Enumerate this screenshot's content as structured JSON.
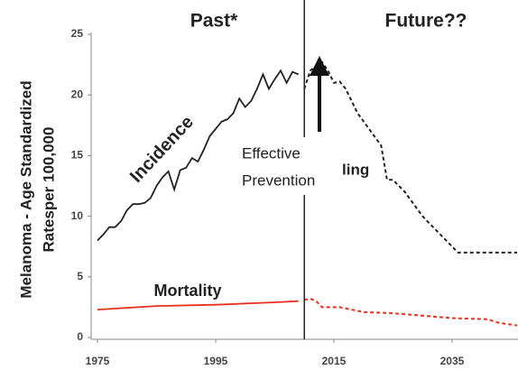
{
  "chart_data": {
    "type": "line",
    "ylabel_lines": [
      "Melanoma  - Age Standardized",
      "Ratesper 100,000"
    ],
    "annotations": {
      "past": "Past*",
      "future": "Future??",
      "incidence": "Incidence",
      "mortality": "Mortality",
      "prevention": [
        "Effective",
        "Prevention"
      ],
      "hidden": "ling"
    },
    "xlim": [
      1975,
      2046
    ],
    "xticks": [
      1975,
      1995,
      2015,
      2035
    ],
    "ylim": [
      0,
      25
    ],
    "yticks": [
      0,
      5,
      10,
      15,
      20,
      25
    ],
    "divider": 2010,
    "grid": false,
    "series": [
      {
        "color": "#222222",
        "dashed": false,
        "x": [
          1975,
          1976,
          1977,
          1978,
          1979,
          1980,
          1981,
          1982,
          1983,
          1984,
          1985,
          1986,
          1987,
          1988,
          1989,
          1990,
          1991,
          1992,
          1993,
          1994,
          1995,
          1996,
          1997,
          1998,
          1999,
          2000,
          2001,
          2002,
          2003,
          2004,
          2005,
          2006,
          2007,
          2008,
          2009
        ],
        "values": [
          8,
          8.5,
          9.1,
          9.1,
          9.6,
          10.5,
          11,
          11,
          11.1,
          11.5,
          12.5,
          13.2,
          13.7,
          12.2,
          13.8,
          14,
          14.8,
          14.5,
          15.5,
          16.6,
          17.2,
          17.8,
          18,
          18.5,
          19.7,
          19,
          19.5,
          20.5,
          21.7,
          20.5,
          21.3,
          22,
          21,
          21.9,
          21.7
        ]
      },
      {
        "color": "#222222",
        "dashed": true,
        "x": [
          2010,
          2011,
          2012,
          2013,
          2014,
          2015,
          2016,
          2017,
          2019,
          2022,
          2023,
          2024,
          2025,
          2027,
          2030,
          2033,
          2036,
          2046
        ],
        "values": [
          20.5,
          22,
          22.4,
          22.7,
          22,
          21,
          21.1,
          20.5,
          18.5,
          16.5,
          15.8,
          13,
          13,
          12,
          10,
          8.5,
          7,
          7
        ]
      },
      {
        "color": "#e8311f",
        "dashed": false,
        "x": [
          1975,
          1985,
          1995,
          2005,
          2009
        ],
        "values": [
          2.3,
          2.6,
          2.7,
          2.9,
          3.0
        ]
      },
      {
        "color": "#e8311f",
        "dashed": true,
        "x": [
          2010,
          2011,
          2012,
          2013,
          2016,
          2020,
          2025,
          2030,
          2035,
          2041,
          2043,
          2046
        ],
        "values": [
          3.1,
          3.2,
          3.0,
          2.5,
          2.5,
          2.1,
          2.0,
          1.8,
          1.6,
          1.5,
          1.2,
          1.0
        ]
      }
    ]
  }
}
